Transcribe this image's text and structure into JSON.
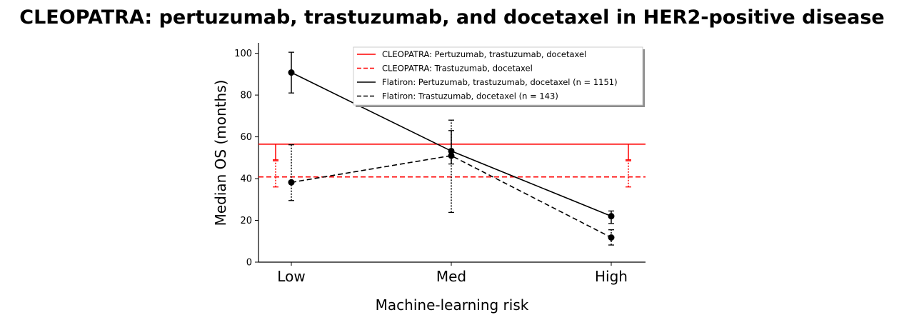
{
  "chart_data": {
    "type": "line",
    "title": "CLEOPATRA: pertuzumab, trastuzumab, and docetaxel in HER2-positive disease",
    "xlabel": "Machine-learning risk",
    "ylabel": "Median OS (months)",
    "categories": [
      "Low",
      "Med",
      "High"
    ],
    "ylim": [
      0,
      105
    ],
    "yticks": [
      0,
      20,
      40,
      60,
      80,
      100
    ],
    "grid": false,
    "legend_position": "top-right",
    "reference_lines": [
      {
        "name": "CLEOPATRA: Pertuzumab, trastuzumab, docetaxel",
        "value": 56.5,
        "ci": [
          49,
          56.5
        ],
        "color": "#ff0000",
        "dash": "solid"
      },
      {
        "name": "CLEOPATRA: Trastuzumab, docetaxel",
        "value": 40.8,
        "ci": [
          36,
          48.5
        ],
        "color": "#ff0000",
        "dash": "dashed"
      }
    ],
    "series": [
      {
        "name": "Flatiron: Pertuzumab, trastuzumab, docetaxel (n = 1151)",
        "values": [
          90.8,
          53.2,
          22.0
        ],
        "lower": [
          81.0,
          47.0,
          18.5
        ],
        "upper": [
          100.5,
          63.0,
          24.5
        ],
        "color": "#000000",
        "dash": "solid"
      },
      {
        "name": "Flatiron: Trastuzumab, docetaxel (n = 143)",
        "values": [
          38.2,
          51.0,
          11.8
        ],
        "lower": [
          29.5,
          23.8,
          8.2
        ],
        "upper": [
          56.2,
          68.0,
          15.5
        ],
        "color": "#000000",
        "dash": "dashed"
      }
    ]
  }
}
